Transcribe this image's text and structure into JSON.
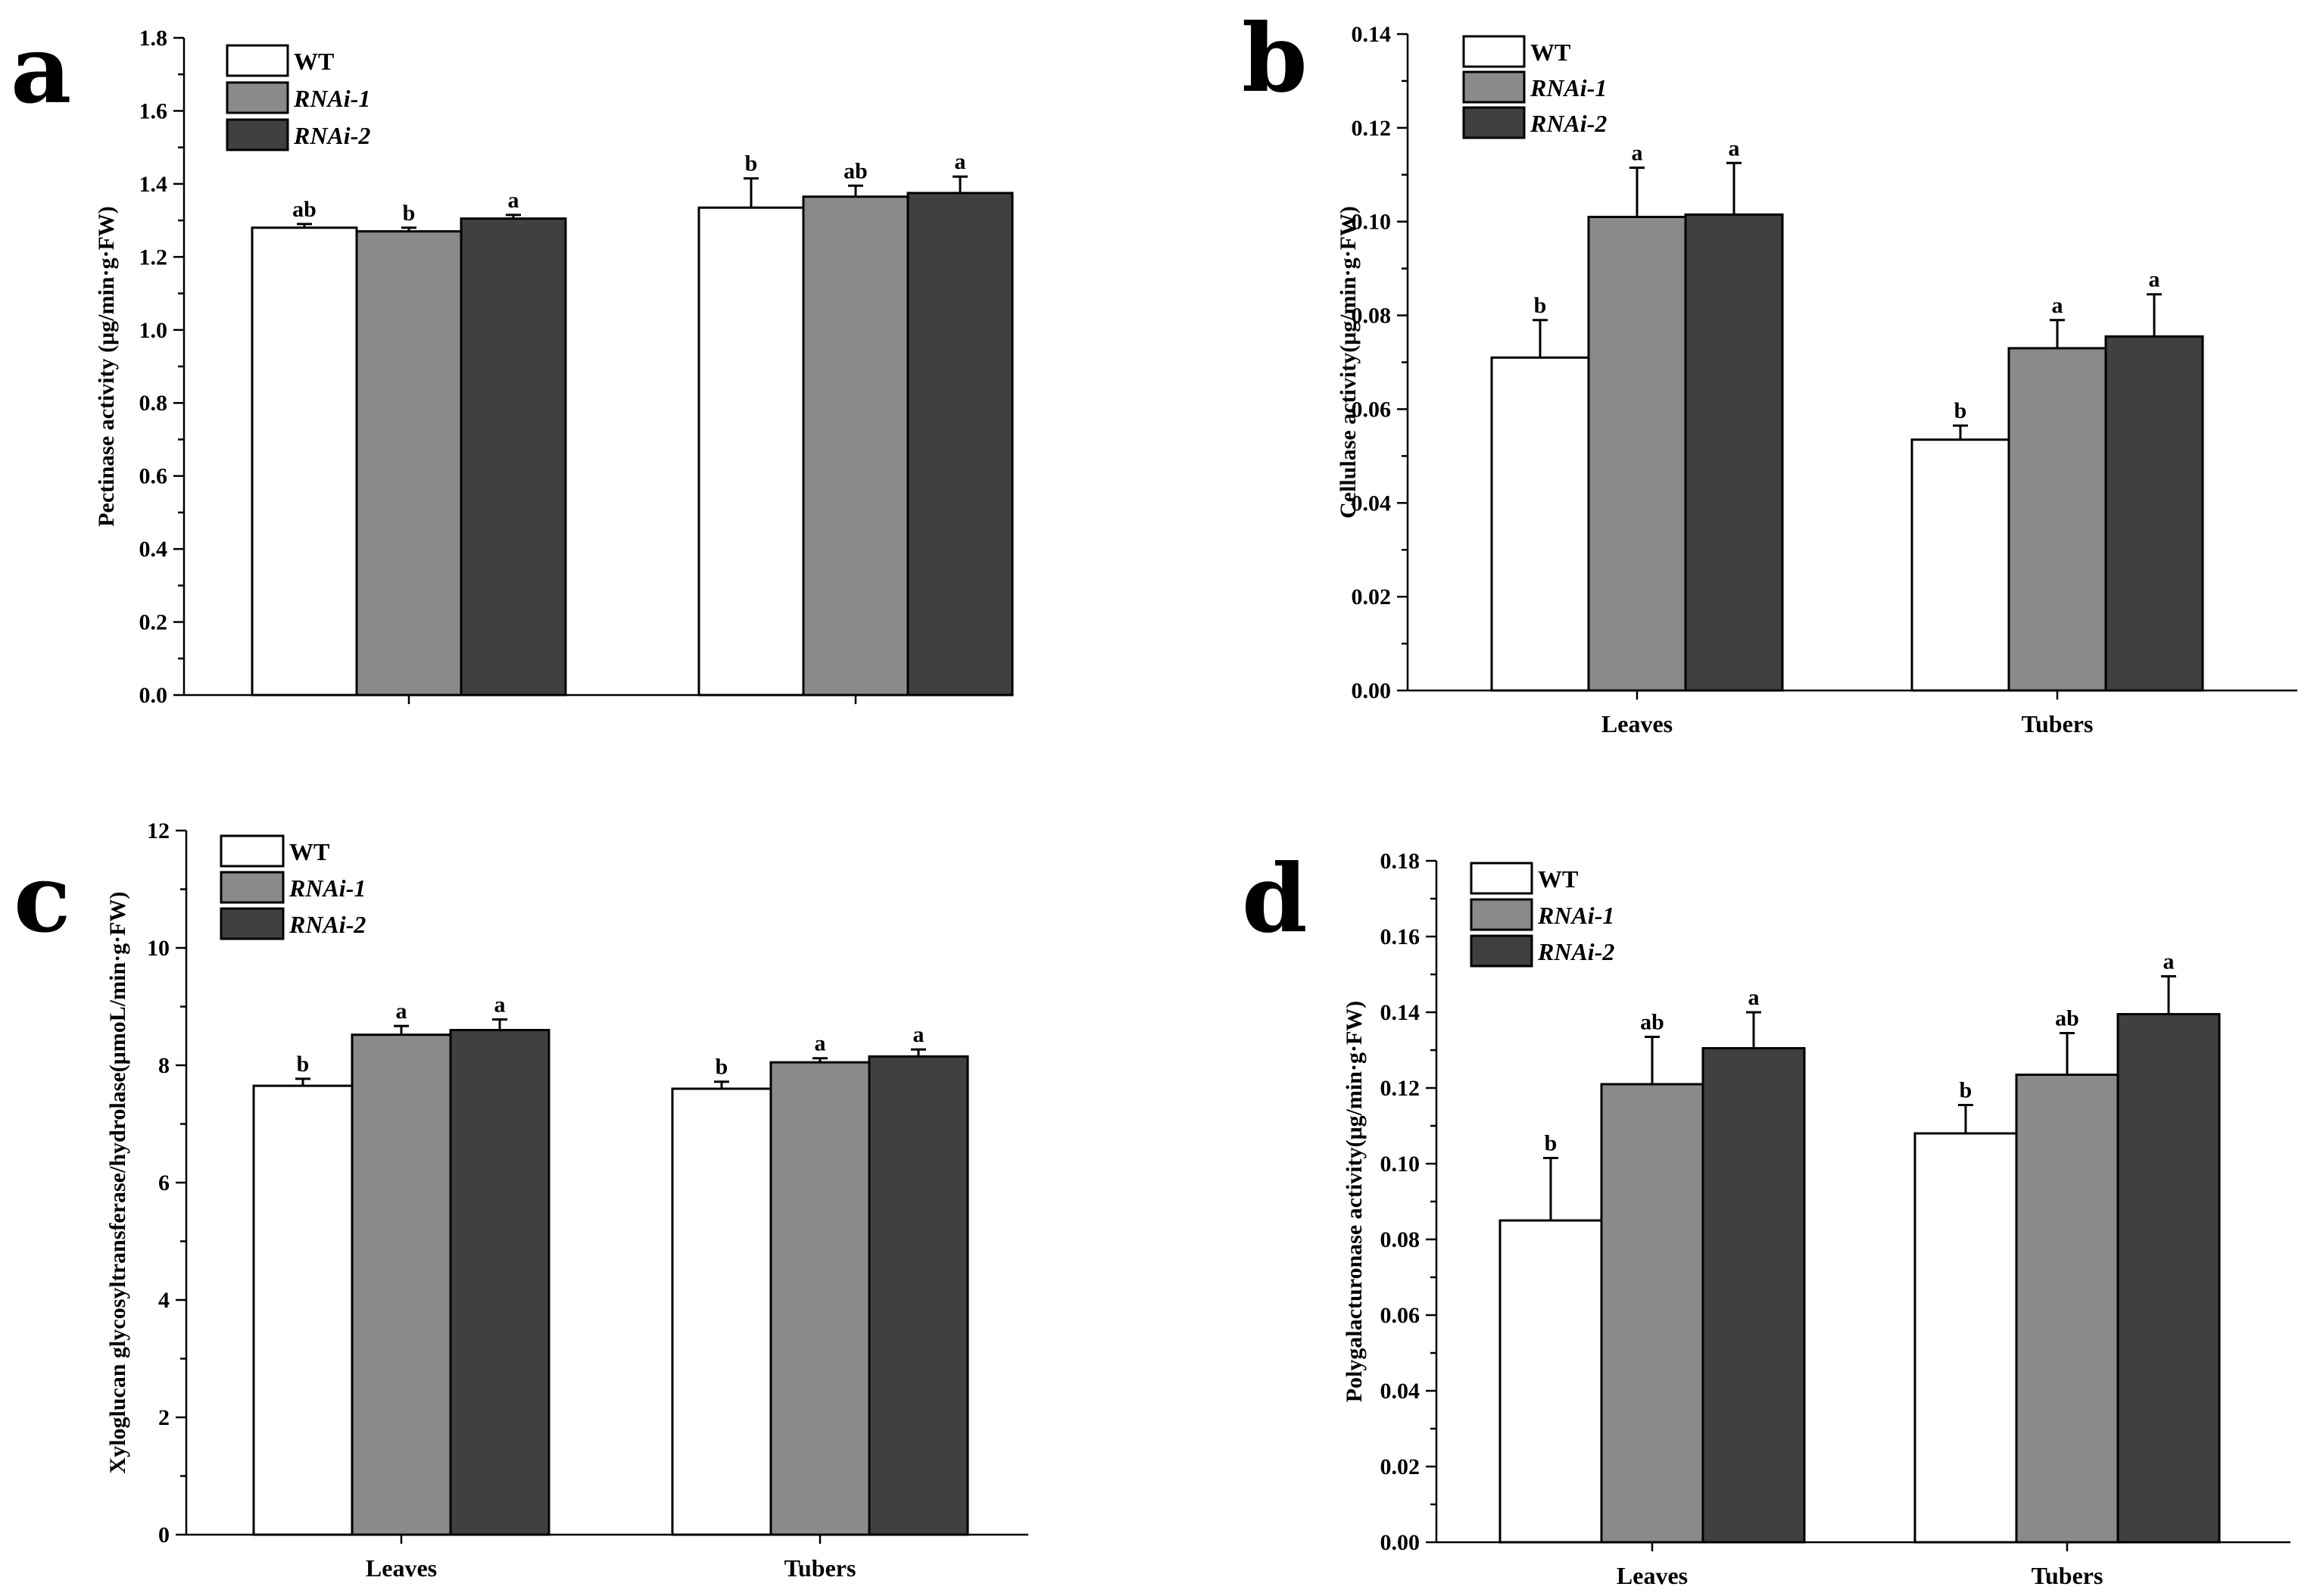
{
  "colors": {
    "WT": "#ffffff",
    "RNAi-1": "#8a8a8a",
    "RNAi-2": "#404040"
  },
  "chart_data": [
    {
      "panel": "a",
      "type": "bar",
      "title": "",
      "xlabel": "",
      "ylabel": "Pectinase activity (μg/min·g·FW)",
      "ylim": [
        0,
        1.8
      ],
      "yticks": [
        "0.0",
        "0.2",
        "0.4",
        "0.6",
        "0.8",
        "1.0",
        "1.2",
        "1.4",
        "1.6",
        "1.8"
      ],
      "categories": [
        "",
        ""
      ],
      "legend": {
        "entries": [
          "WT",
          "RNAi-1",
          "RNAi-2"
        ],
        "position": "top-left"
      },
      "series": [
        {
          "name": "WT",
          "values": [
            1.28,
            1.335
          ],
          "errors": [
            0.01,
            0.08
          ],
          "sig": [
            "ab",
            "b"
          ]
        },
        {
          "name": "RNAi-1",
          "values": [
            1.27,
            1.365
          ],
          "errors": [
            0.01,
            0.03
          ],
          "sig": [
            "b",
            "ab"
          ]
        },
        {
          "name": "RNAi-2",
          "values": [
            1.305,
            1.375
          ],
          "errors": [
            0.01,
            0.045
          ],
          "sig": [
            "a",
            "a"
          ]
        }
      ]
    },
    {
      "panel": "b",
      "type": "bar",
      "title": "",
      "xlabel": "",
      "ylabel": "Cellulase activity(μg/min·g·FW)",
      "ylim": [
        0,
        0.14
      ],
      "yticks": [
        "0.00",
        "0.02",
        "0.04",
        "0.06",
        "0.08",
        "0.10",
        "0.12",
        "0.14"
      ],
      "categories": [
        "Leaves",
        "Tubers"
      ],
      "legend": {
        "entries": [
          "WT",
          "RNAi-1",
          "RNAi-2"
        ],
        "position": "top-left"
      },
      "series": [
        {
          "name": "WT",
          "values": [
            0.071,
            0.0535
          ],
          "errors": [
            0.008,
            0.003
          ],
          "sig": [
            "b",
            "b"
          ]
        },
        {
          "name": "RNAi-1",
          "values": [
            0.101,
            0.073
          ],
          "errors": [
            0.0105,
            0.006
          ],
          "sig": [
            "a",
            "a"
          ]
        },
        {
          "name": "RNAi-2",
          "values": [
            0.1015,
            0.0755
          ],
          "errors": [
            0.011,
            0.009
          ],
          "sig": [
            "a",
            "a"
          ]
        }
      ]
    },
    {
      "panel": "c",
      "type": "bar",
      "title": "",
      "xlabel": "",
      "ylabel": "Xyloglucan glycosyltransferase/hydrolase(μmoL/min·g·FW)",
      "ylim": [
        0,
        12
      ],
      "yticks": [
        "0",
        "2",
        "4",
        "6",
        "8",
        "10",
        "12"
      ],
      "categories": [
        "Leaves",
        "Tubers"
      ],
      "legend": {
        "entries": [
          "WT",
          "RNAi-1",
          "RNAi-2"
        ],
        "position": "top-left"
      },
      "series": [
        {
          "name": "WT",
          "values": [
            7.65,
            7.6
          ],
          "errors": [
            0.12,
            0.12
          ],
          "sig": [
            "b",
            "b"
          ]
        },
        {
          "name": "RNAi-1",
          "values": [
            8.52,
            8.05
          ],
          "errors": [
            0.15,
            0.07
          ],
          "sig": [
            "a",
            "a"
          ]
        },
        {
          "name": "RNAi-2",
          "values": [
            8.6,
            8.15
          ],
          "errors": [
            0.18,
            0.12
          ],
          "sig": [
            "a",
            "a"
          ]
        }
      ]
    },
    {
      "panel": "d",
      "type": "bar",
      "title": "",
      "xlabel": "",
      "ylabel": "Polygalacturonase activity(μg/min·g·FW)",
      "ylim": [
        0,
        0.18
      ],
      "yticks": [
        "0.00",
        "0.02",
        "0.04",
        "0.06",
        "0.08",
        "0.10",
        "0.12",
        "0.14",
        "0.16",
        "0.18"
      ],
      "categories": [
        "Leaves",
        "Tubers"
      ],
      "legend": {
        "entries": [
          "WT",
          "RNAi-1",
          "RNAi-2"
        ],
        "position": "top-left"
      },
      "series": [
        {
          "name": "WT",
          "values": [
            0.085,
            0.108
          ],
          "errors": [
            0.0165,
            0.0075
          ],
          "sig": [
            "b",
            "b"
          ]
        },
        {
          "name": "RNAi-1",
          "values": [
            0.121,
            0.1235
          ],
          "errors": [
            0.0125,
            0.011
          ],
          "sig": [
            "ab",
            "ab"
          ]
        },
        {
          "name": "RNAi-2",
          "values": [
            0.1305,
            0.1395
          ],
          "errors": [
            0.0095,
            0.01
          ],
          "sig": [
            "a",
            "a"
          ]
        }
      ]
    }
  ]
}
